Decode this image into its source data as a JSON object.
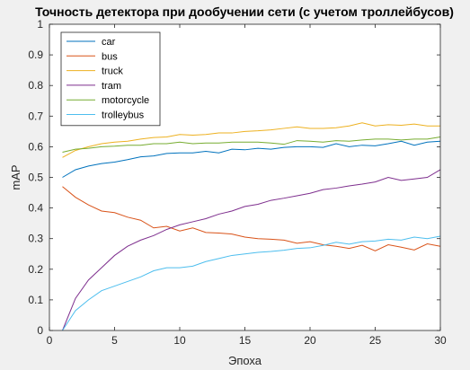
{
  "chart_data": {
    "type": "line",
    "title": "Точность детектора при дообучении сети (с учетом троллейбусов)",
    "xlabel": "Эпоха",
    "ylabel": "mAP",
    "xlim": [
      0,
      30
    ],
    "ylim": [
      0,
      1
    ],
    "xticks": [
      0,
      5,
      10,
      15,
      20,
      25,
      30
    ],
    "yticks": [
      0,
      0.1,
      0.2,
      0.3,
      0.4,
      0.5,
      0.6,
      0.7,
      0.8,
      0.9,
      1
    ],
    "grid": false,
    "legend_position": "top-left",
    "x": [
      1,
      2,
      3,
      4,
      5,
      6,
      7,
      8,
      9,
      10,
      11,
      12,
      13,
      14,
      15,
      16,
      17,
      18,
      19,
      20,
      21,
      22,
      23,
      24,
      25,
      26,
      27,
      28,
      29,
      30
    ],
    "series": [
      {
        "name": "car",
        "color": "#0072bd",
        "values": [
          0.5,
          0.525,
          0.537,
          0.545,
          0.55,
          0.558,
          0.567,
          0.57,
          0.578,
          0.58,
          0.58,
          0.585,
          0.58,
          0.592,
          0.59,
          0.595,
          0.592,
          0.598,
          0.6,
          0.6,
          0.598,
          0.61,
          0.6,
          0.605,
          0.603,
          0.61,
          0.618,
          0.605,
          0.615,
          0.618
        ]
      },
      {
        "name": "bus",
        "color": "#d95319",
        "values": [
          0.47,
          0.435,
          0.41,
          0.39,
          0.385,
          0.37,
          0.36,
          0.335,
          0.34,
          0.325,
          0.335,
          0.32,
          0.318,
          0.315,
          0.305,
          0.3,
          0.298,
          0.295,
          0.285,
          0.29,
          0.28,
          0.275,
          0.268,
          0.278,
          0.26,
          0.28,
          0.272,
          0.263,
          0.283,
          0.275
        ]
      },
      {
        "name": "truck",
        "color": "#edb120",
        "values": [
          0.565,
          0.588,
          0.6,
          0.61,
          0.615,
          0.618,
          0.625,
          0.63,
          0.632,
          0.64,
          0.638,
          0.64,
          0.645,
          0.645,
          0.65,
          0.652,
          0.655,
          0.66,
          0.665,
          0.66,
          0.66,
          0.662,
          0.668,
          0.678,
          0.668,
          0.672,
          0.67,
          0.674,
          0.668,
          0.668
        ]
      },
      {
        "name": "tram",
        "color": "#7e2f8e",
        "values": [
          0.0,
          0.105,
          0.165,
          0.205,
          0.245,
          0.275,
          0.295,
          0.31,
          0.33,
          0.345,
          0.355,
          0.365,
          0.38,
          0.39,
          0.405,
          0.412,
          0.425,
          0.432,
          0.44,
          0.448,
          0.46,
          0.465,
          0.472,
          0.478,
          0.485,
          0.5,
          0.49,
          0.495,
          0.5,
          0.525
        ]
      },
      {
        "name": "motorcycle",
        "color": "#77ac30",
        "values": [
          0.582,
          0.592,
          0.595,
          0.6,
          0.602,
          0.605,
          0.605,
          0.61,
          0.61,
          0.615,
          0.61,
          0.612,
          0.612,
          0.615,
          0.615,
          0.615,
          0.612,
          0.608,
          0.62,
          0.618,
          0.615,
          0.62,
          0.618,
          0.622,
          0.625,
          0.625,
          0.622,
          0.625,
          0.625,
          0.632
        ]
      },
      {
        "name": "trolleybus",
        "color": "#4dbeee",
        "values": [
          0.0,
          0.065,
          0.1,
          0.13,
          0.145,
          0.16,
          0.175,
          0.195,
          0.205,
          0.205,
          0.21,
          0.225,
          0.235,
          0.245,
          0.25,
          0.255,
          0.258,
          0.262,
          0.268,
          0.27,
          0.278,
          0.288,
          0.282,
          0.29,
          0.292,
          0.298,
          0.295,
          0.305,
          0.3,
          0.308
        ]
      }
    ]
  }
}
